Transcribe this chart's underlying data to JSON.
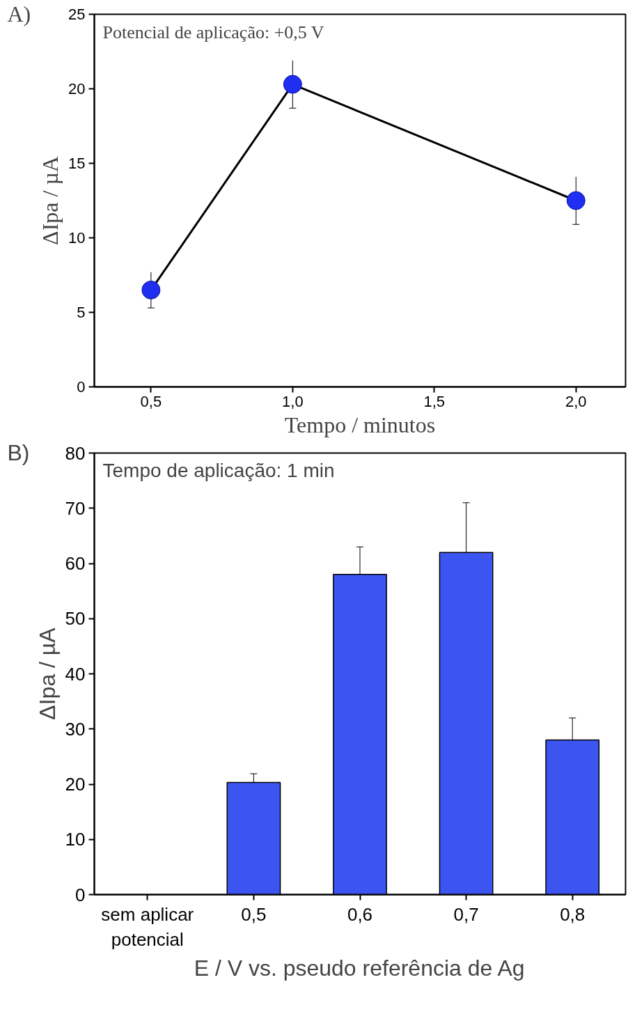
{
  "chart_data": [
    {
      "type": "line",
      "xlabel": "Tempo / minutos",
      "ylabel": "ΔIpa / µA",
      "annotations": [
        "A)",
        "Potencial de aplicação: +0,5 V"
      ],
      "x": [
        0.5,
        1.0,
        2.0
      ],
      "values": [
        6.5,
        20.3,
        12.5
      ],
      "errors": [
        1.2,
        1.6,
        1.6
      ],
      "color": "#1f2ef0",
      "marker": "circle",
      "xlim": [
        0.3,
        2.175
      ],
      "xticks": [
        {
          "value": 0.5,
          "label": "0,5"
        },
        {
          "value": 1.0,
          "label": "1,0"
        },
        {
          "value": 1.5,
          "label": "1,5"
        },
        {
          "value": 2.0,
          "label": "2,0"
        }
      ],
      "ylim": [
        0,
        25
      ],
      "yticks": [
        0,
        5,
        10,
        15,
        20,
        25
      ],
      "grid": false
    },
    {
      "type": "bar",
      "xlabel": "E / V vs. pseudo referência de Ag",
      "ylabel": "ΔIpa / µA",
      "annotations": [
        "B)",
        "Tempo de aplicação: 1 min"
      ],
      "categories": [
        "sem aplicar\npotencial",
        "0,5",
        "0,6",
        "0,7",
        "0,8"
      ],
      "values": [
        null,
        20.3,
        58,
        62,
        28
      ],
      "errors": [
        null,
        1.6,
        5,
        9,
        4
      ],
      "color": "#3d55f0",
      "ylim": [
        0,
        80
      ],
      "yticks": [
        0,
        10,
        20,
        30,
        40,
        50,
        60,
        70,
        80
      ],
      "grid": false
    }
  ]
}
